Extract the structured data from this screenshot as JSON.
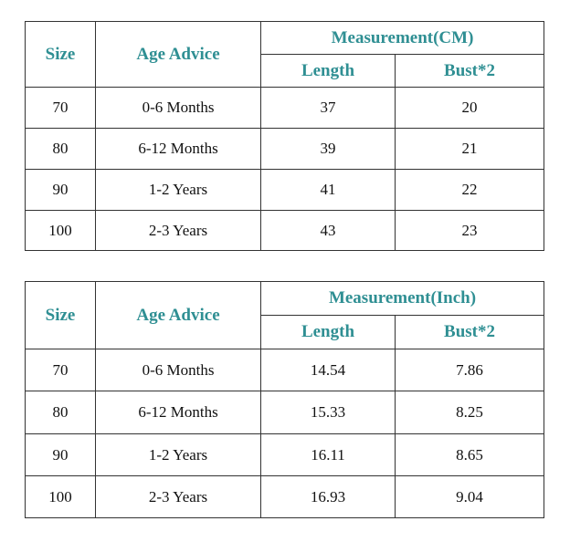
{
  "tables": [
    {
      "headers": {
        "size": "Size",
        "age": "Age Advice",
        "measurement": "Measurement(CM)",
        "length": "Length",
        "bust": "Bust*2"
      },
      "rows": [
        [
          70,
          "0-6 Months",
          37,
          20
        ],
        [
          80,
          "6-12 Months",
          39,
          21
        ],
        [
          90,
          "1-2 Years",
          41,
          22
        ],
        [
          100,
          "2-3 Years",
          43,
          23
        ]
      ]
    },
    {
      "headers": {
        "size": "Size",
        "age": "Age Advice",
        "measurement": "Measurement(Inch)",
        "length": "Length",
        "bust": "Bust*2"
      },
      "rows": [
        [
          70,
          "0-6 Months",
          14.54,
          7.86
        ],
        [
          80,
          "6-12 Months",
          15.33,
          8.25
        ],
        [
          90,
          "1-2 Years",
          16.11,
          8.65
        ],
        [
          100,
          "2-3 Years",
          16.93,
          9.04
        ]
      ]
    }
  ]
}
